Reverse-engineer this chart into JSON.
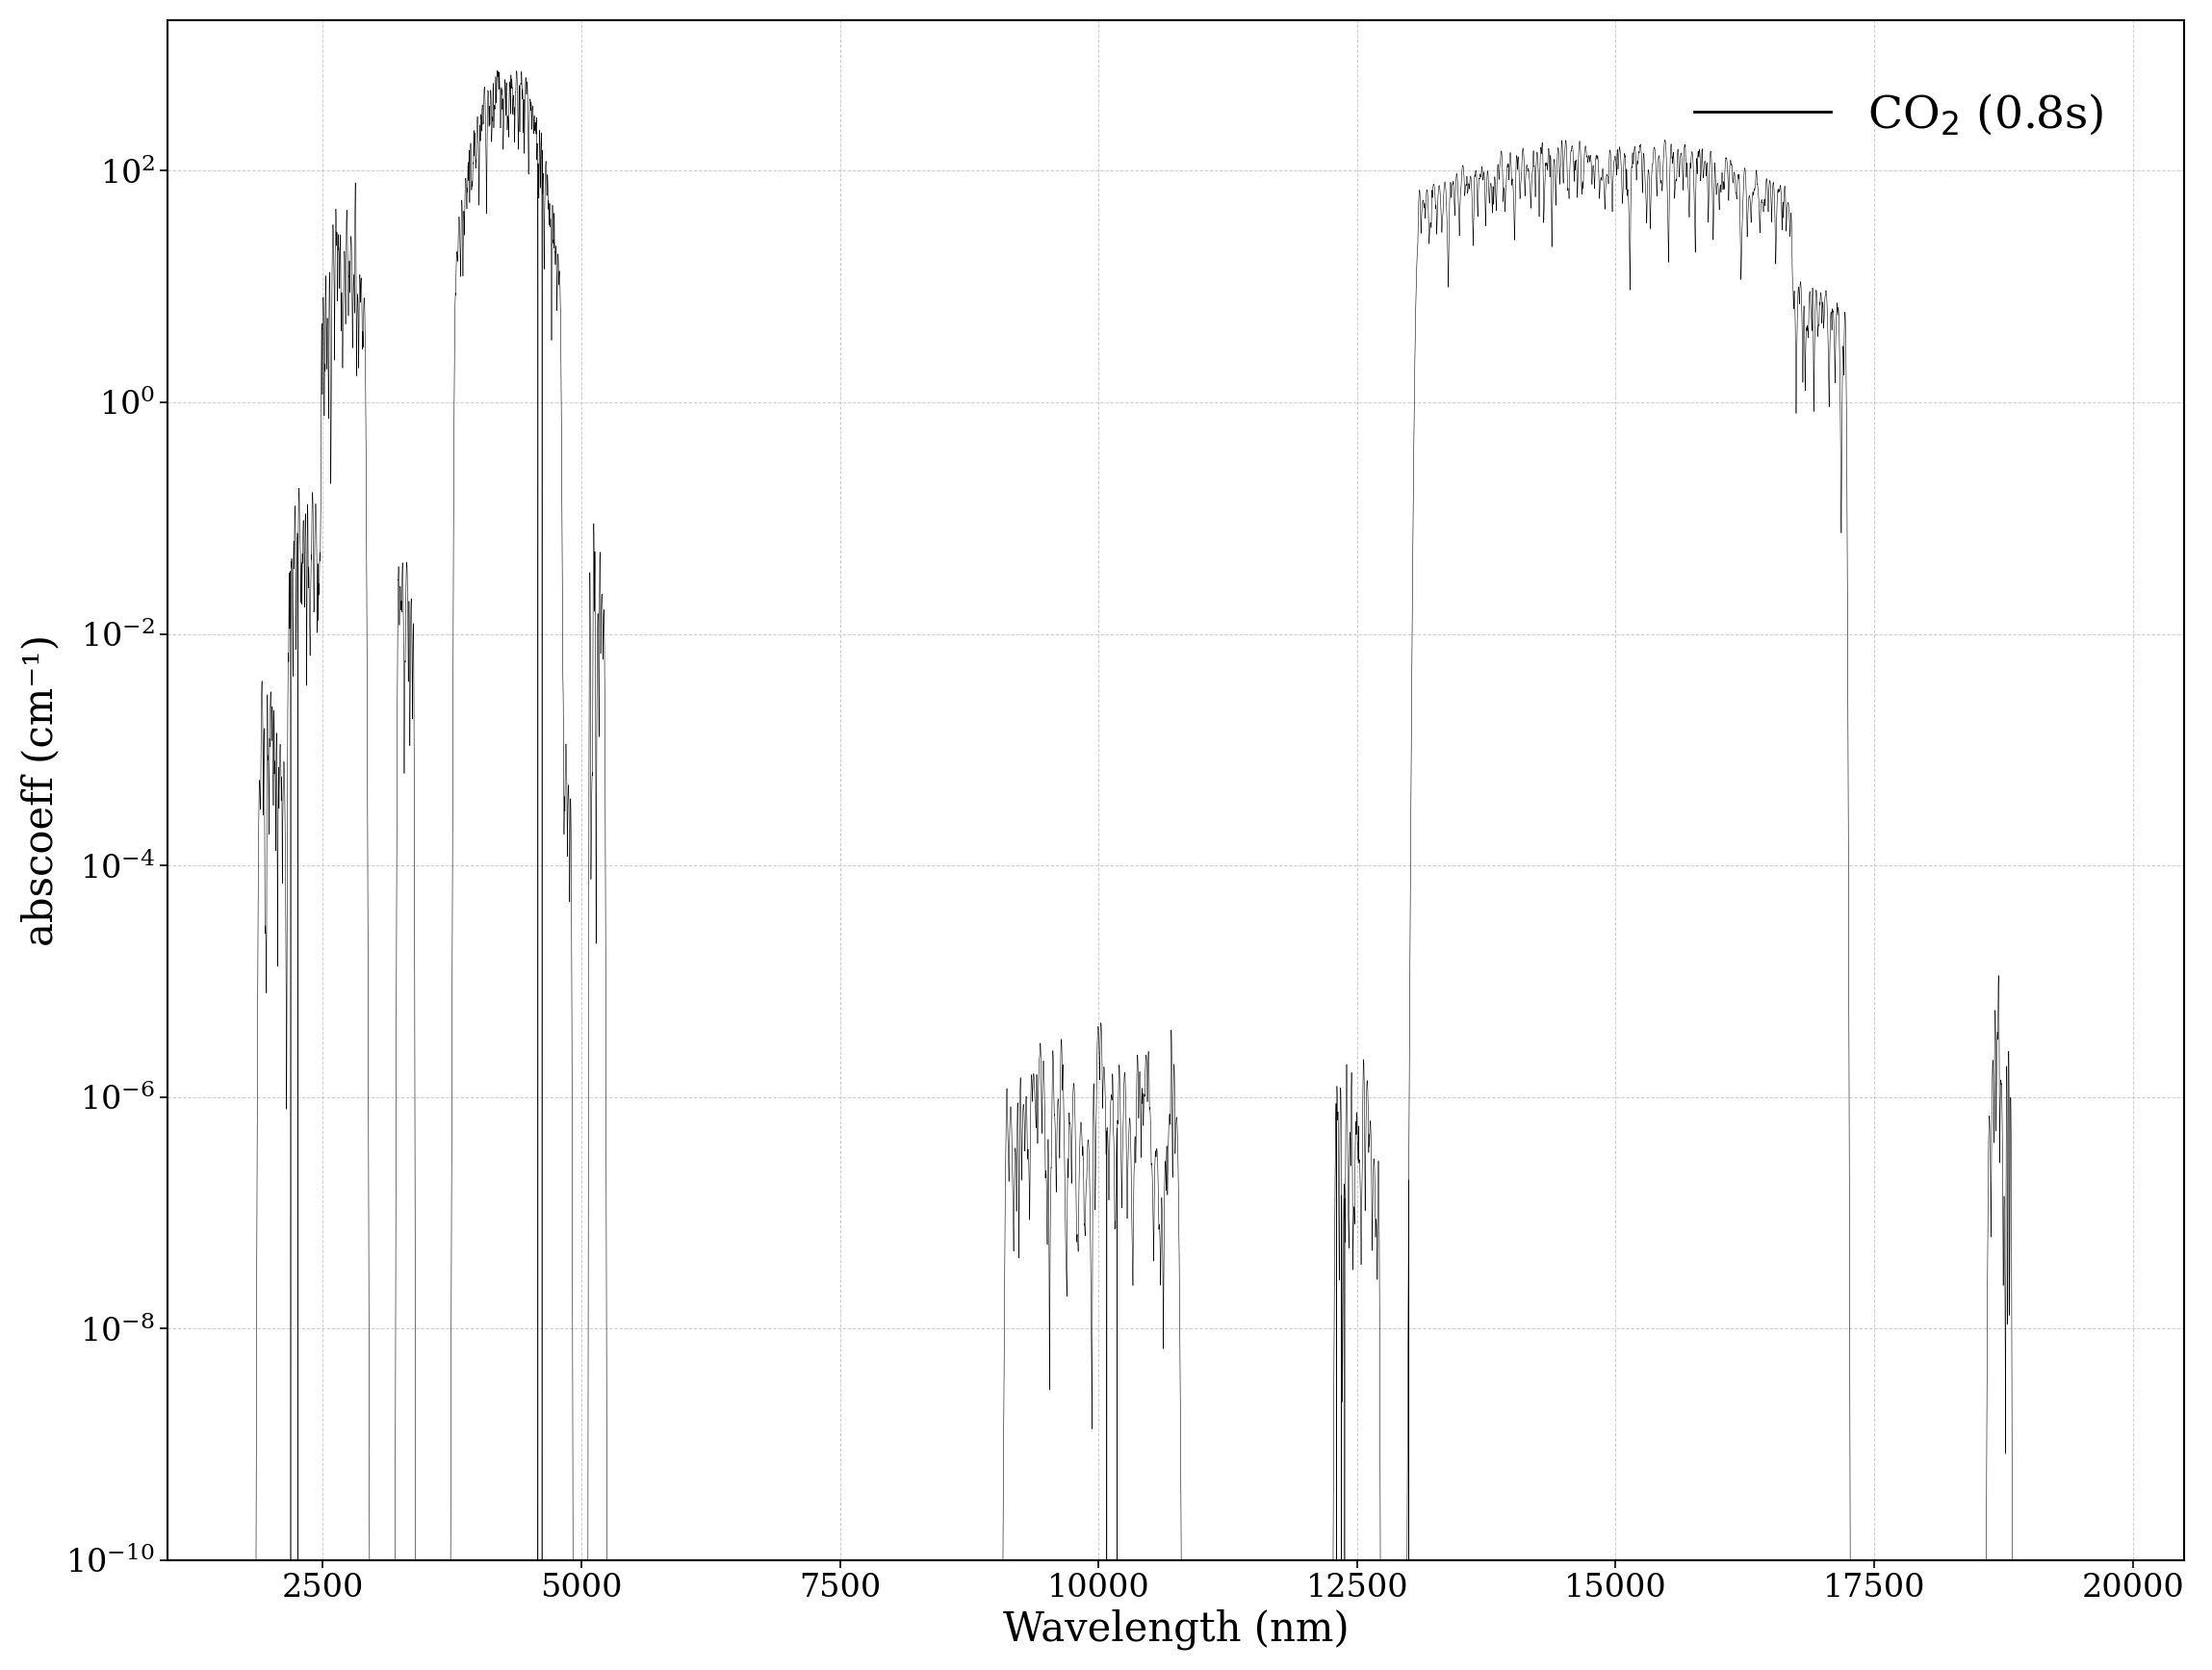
{
  "xlabel": "Wavelength (nm)",
  "ylabel": "abscoeff (cm⁻¹)",
  "xlim": [
    1000,
    20500
  ],
  "ylim": [
    1e-10,
    2000.0
  ],
  "xticks": [
    2500,
    5000,
    7500,
    10000,
    12500,
    15000,
    17500,
    20000
  ],
  "background_color": "#ffffff",
  "line_color": "#000000",
  "grid_color": "#aaaaaa",
  "floor": 1e-12
}
